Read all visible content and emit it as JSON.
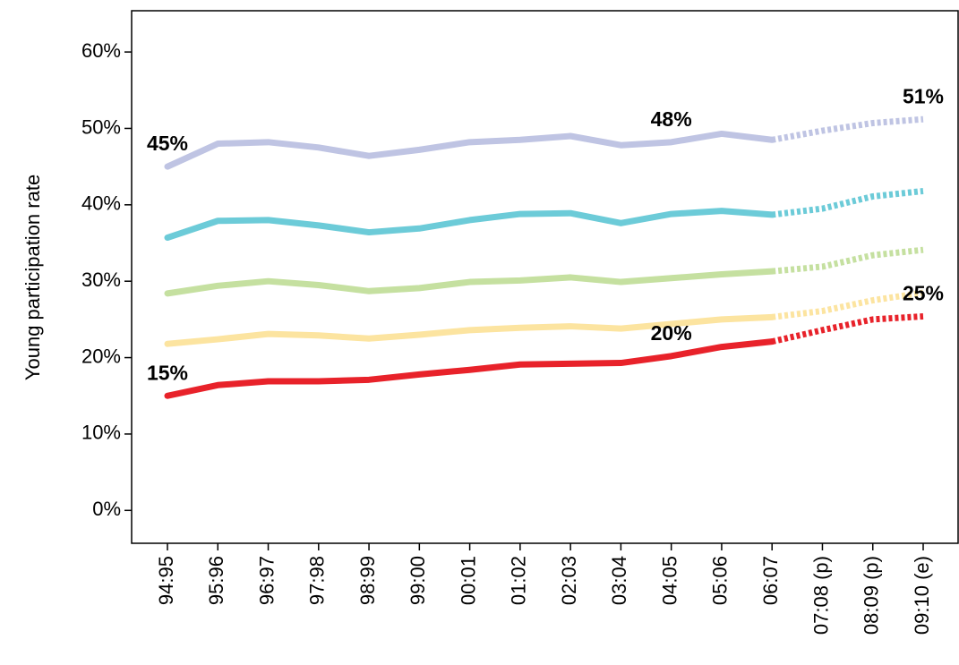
{
  "chart_data": {
    "type": "line",
    "y_label": "Young participation rate",
    "categories": [
      "94:95",
      "95:96",
      "96:97",
      "97:98",
      "98:99",
      "99:00",
      "00:01",
      "01:02",
      "02:03",
      "03:04",
      "04:05",
      "05:06",
      "06:07",
      "07:08 (p)",
      "08:09 (p)",
      "09:10 (e)"
    ],
    "projection_from_index": 12,
    "series": [
      {
        "color": "#bfc4e3",
        "values": [
          45,
          48.0,
          48.2,
          47.5,
          46.4,
          47.2,
          48.2,
          48.5,
          49.0,
          47.8,
          48.2,
          49.3,
          48.5,
          49.7,
          50.7,
          51.2
        ],
        "value_labels": [
          "45%",
          null,
          null,
          null,
          null,
          null,
          null,
          null,
          null,
          null,
          "48%",
          null,
          null,
          null,
          null,
          "51%"
        ]
      },
      {
        "color": "#6ccbd8",
        "values": [
          35.7,
          37.9,
          38.0,
          37.3,
          36.4,
          36.9,
          38.0,
          38.8,
          38.9,
          37.6,
          38.8,
          39.2,
          38.7,
          39.5,
          41.1,
          41.8
        ]
      },
      {
        "color": "#c5e0a0",
        "values": [
          28.4,
          29.4,
          30.0,
          29.5,
          28.7,
          29.1,
          29.9,
          30.1,
          30.5,
          29.9,
          30.4,
          30.9,
          31.3,
          31.9,
          33.4,
          34.1
        ]
      },
      {
        "color": "#fce4a0",
        "values": [
          21.8,
          22.4,
          23.1,
          22.9,
          22.5,
          23.0,
          23.6,
          23.9,
          24.1,
          23.8,
          24.4,
          25.0,
          25.3,
          26.1,
          27.5,
          28.5
        ]
      },
      {
        "color": "#e8222a",
        "values": [
          15.0,
          16.4,
          16.9,
          16.9,
          17.1,
          17.8,
          18.4,
          19.1,
          19.2,
          19.3,
          20.2,
          21.4,
          22.1,
          23.6,
          25.0,
          25.4
        ],
        "value_labels": [
          "15%",
          null,
          null,
          null,
          null,
          null,
          null,
          null,
          null,
          null,
          "20%",
          null,
          null,
          null,
          null,
          "25%"
        ]
      }
    ],
    "ylim": [
      -4.3,
      65.4
    ],
    "yticks": [
      {
        "value": 0,
        "label": "0%"
      },
      {
        "value": 10,
        "label": "10%"
      },
      {
        "value": 20,
        "label": "20%"
      },
      {
        "value": 30,
        "label": "30%"
      },
      {
        "value": 40,
        "label": "40%"
      },
      {
        "value": 50,
        "label": "50%"
      },
      {
        "value": 60,
        "label": "60%"
      }
    ]
  }
}
